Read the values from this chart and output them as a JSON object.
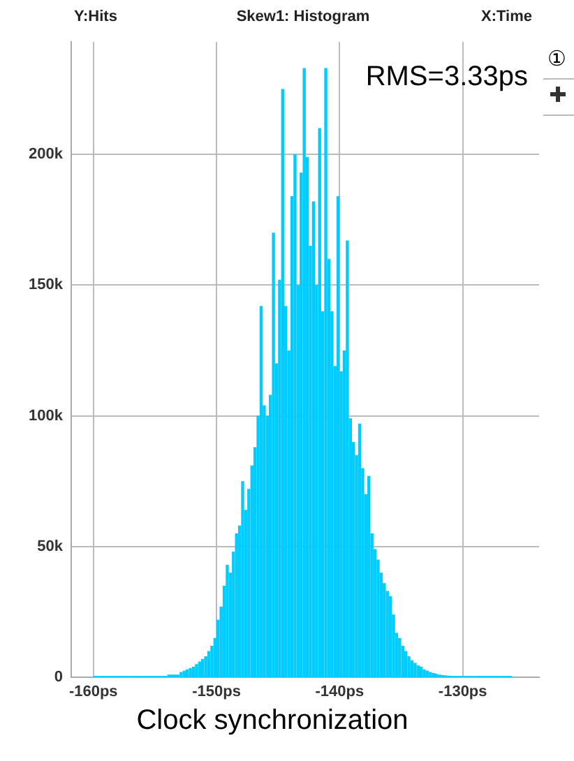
{
  "chart_data": {
    "type": "histogram",
    "title": "Skew1: Histogram",
    "ylabel": "Y:Hits",
    "xlabel": "X:Time",
    "annotations": [
      "RMS=3.33ps",
      "Clock synchronization",
      "①"
    ],
    "color": "#00ccff",
    "bins": [
      -160,
      -159,
      -158,
      -157,
      -156,
      -155,
      -154,
      -153,
      -152.75,
      -152.5,
      -152.25,
      -152,
      -151.75,
      -151.5,
      -151.25,
      -151,
      -150.75,
      -150.5,
      -150.25,
      -150,
      -149.75,
      -149.5,
      -149.25,
      -149,
      -148.75,
      -148.5,
      -148.25,
      -148,
      -147.75,
      -147.5,
      -147.25,
      -147,
      -146.75,
      -146.5,
      -146.25,
      -146,
      -145.75,
      -145.5,
      -145.25,
      -145,
      -144.75,
      -144.5,
      -144.25,
      -144,
      -143.75,
      -143.5,
      -143.25,
      -143,
      -142.75,
      -142.5,
      -142.25,
      -142,
      -141.75,
      -141.5,
      -141.25,
      -141,
      -140.75,
      -140.5,
      -140.25,
      -140,
      -139.75,
      -139.5,
      -139.25,
      -139,
      -138.75,
      -138.5,
      -138.25,
      -138,
      -137.75,
      -137.5,
      -137.25,
      -137,
      -136.75,
      -136.5,
      -136.25,
      -136,
      -135.75,
      -135.5,
      -135.25,
      -135,
      -134.75,
      -134.5,
      -134.25,
      -134,
      -133.75,
      -133.5,
      -133.25,
      -133,
      -132.75,
      -132.5,
      -132.25,
      -132,
      -131.75,
      -131.5,
      -131.25,
      -131,
      -130,
      -129,
      -128,
      -127,
      -126
    ],
    "values": [
      500,
      500,
      500,
      500,
      500,
      500,
      1000,
      2000,
      2500,
      3000,
      3500,
      4000,
      5000,
      6000,
      7000,
      8000,
      10000,
      12000,
      15000,
      22000,
      27000,
      35000,
      43000,
      40000,
      48000,
      55000,
      58000,
      75000,
      64000,
      72000,
      81000,
      88000,
      100000,
      142000,
      104000,
      100000,
      108000,
      170000,
      120000,
      152000,
      225000,
      142000,
      125000,
      184000,
      200000,
      150000,
      193000,
      233000,
      199000,
      165000,
      182000,
      150000,
      210000,
      140000,
      233000,
      160000,
      140000,
      119000,
      184000,
      117000,
      125000,
      167000,
      99000,
      90000,
      85000,
      97000,
      80000,
      70000,
      77000,
      55000,
      49000,
      45000,
      40000,
      36000,
      33000,
      31000,
      24000,
      17000,
      15000,
      12000,
      10000,
      8000,
      6500,
      5500,
      4500,
      4000,
      3000,
      2500,
      2000,
      1600,
      1300,
      1000,
      800,
      700,
      600,
      500,
      500,
      500,
      500,
      500
    ],
    "xlim": [
      -161.8,
      -123.8
    ],
    "xticks": [
      {
        "value": -160,
        "label": "-160ps"
      },
      {
        "value": -150,
        "label": "-150ps"
      },
      {
        "value": -140,
        "label": "-140ps"
      },
      {
        "value": -130,
        "label": "-130ps"
      }
    ],
    "ylim": [
      0,
      243000
    ],
    "yticks": [
      {
        "value": 0,
        "label": "0"
      },
      {
        "value": 50000,
        "label": "50k"
      },
      {
        "value": 100000,
        "label": "100k"
      },
      {
        "value": 150000,
        "label": "150k"
      },
      {
        "value": 200000,
        "label": "200k"
      }
    ],
    "grid": true
  }
}
